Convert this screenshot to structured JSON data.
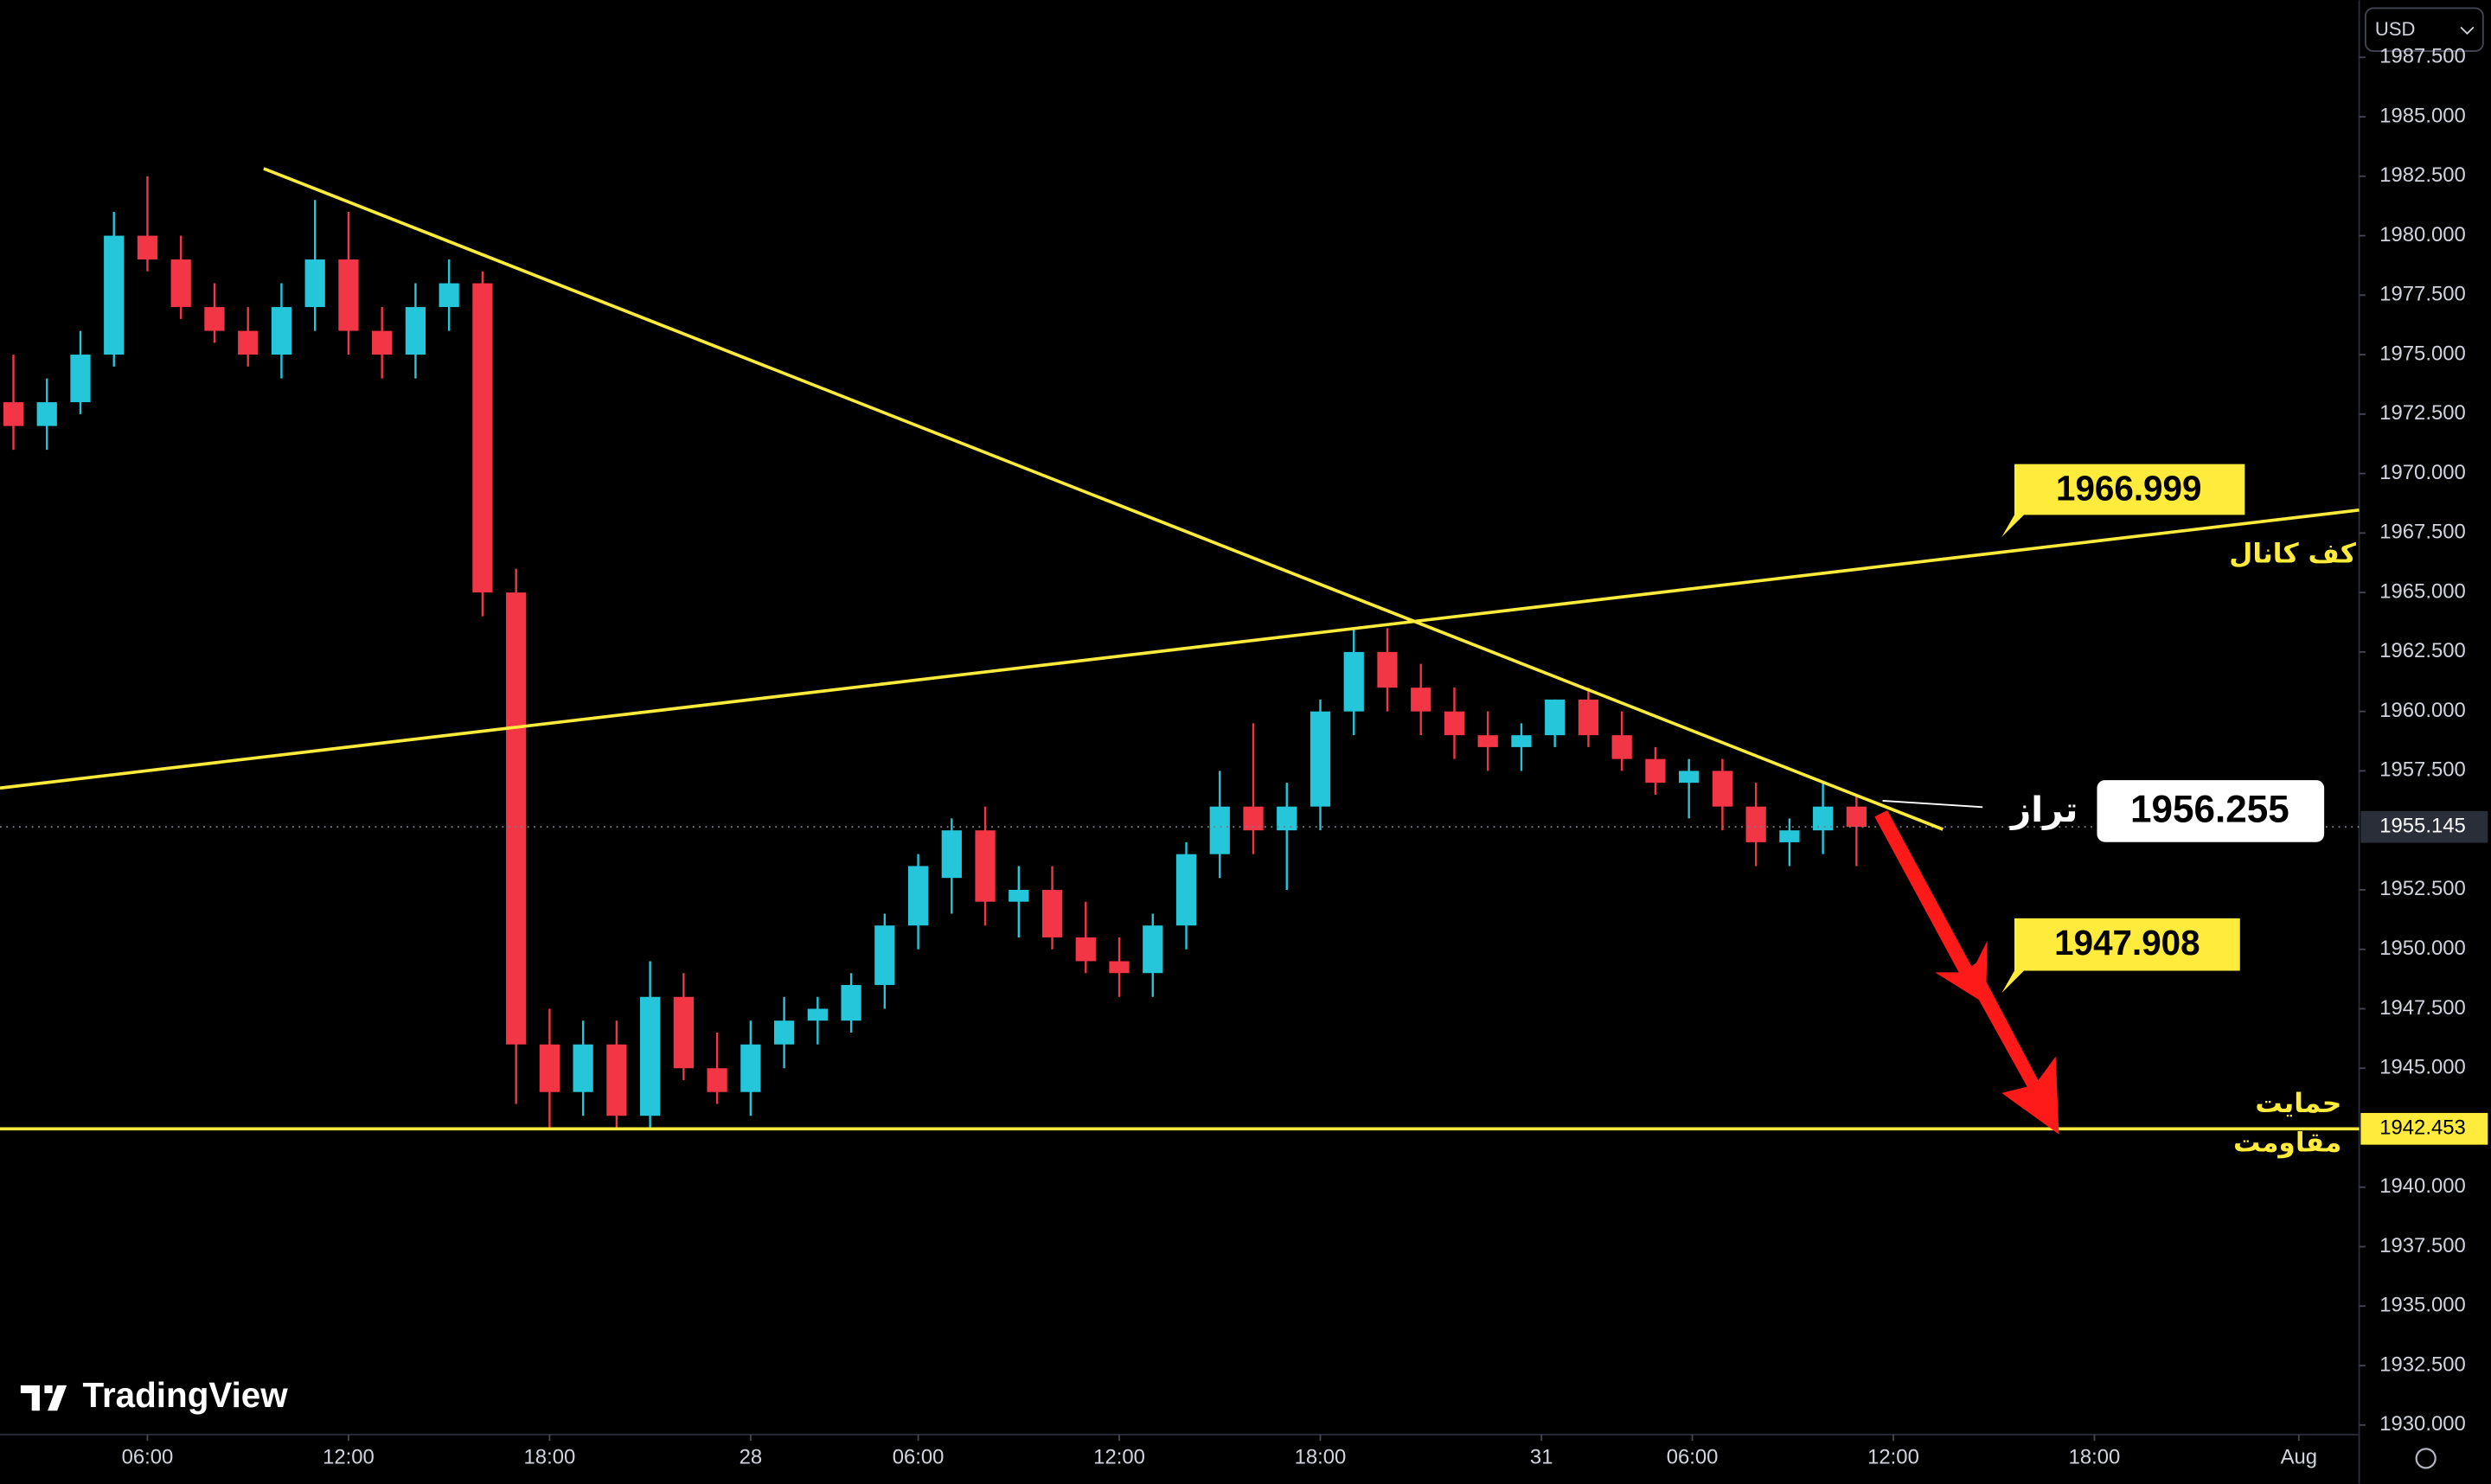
{
  "chart_data": {
    "type": "candlestick",
    "currency": "USD",
    "watermark": "TradingView",
    "x": [
      2,
      3,
      4,
      5,
      6,
      7,
      8,
      9,
      10,
      11,
      12,
      13,
      14,
      15,
      16,
      17,
      18,
      19,
      20,
      21,
      22,
      23,
      24,
      25,
      26,
      27,
      28,
      29,
      30,
      31,
      32,
      33,
      34,
      35,
      36,
      37,
      38,
      39,
      40,
      41,
      42,
      43,
      44,
      45,
      46,
      47,
      48,
      49,
      50,
      51,
      52,
      53,
      54,
      55,
      56,
      57
    ],
    "open": [
      1973,
      1972,
      1973,
      1975,
      1980,
      1979,
      1977,
      1976,
      1975,
      1977,
      1979,
      1976,
      1975,
      1977,
      1978,
      1965,
      1946,
      1944,
      1946,
      1943,
      1948,
      1945,
      1944,
      1946,
      1947,
      1947,
      1948.5,
      1951,
      1953,
      1955,
      1952,
      1952.5,
      1950.5,
      1949.5,
      1949,
      1951,
      1954,
      1956,
      1955,
      1956,
      1960,
      1962.5,
      1961,
      1960,
      1959,
      1958.5,
      1959,
      1960.5,
      1959,
      1958,
      1957,
      1957.5,
      1956,
      1954.5,
      1955,
      1956
    ],
    "high": [
      1975,
      1974,
      1976,
      1981,
      1982.5,
      1980,
      1978,
      1977,
      1978,
      1981.5,
      1981,
      1977,
      1978,
      1979,
      1978.5,
      1966,
      1947.5,
      1947,
      1947,
      1949.5,
      1949,
      1946.5,
      1947,
      1948,
      1948,
      1949,
      1951.5,
      1954,
      1955.5,
      1956,
      1953.5,
      1953.5,
      1952,
      1950.5,
      1951.5,
      1954.5,
      1957.5,
      1959.5,
      1957,
      1960.5,
      1963.5,
      1963.5,
      1962,
      1961,
      1960,
      1959.5,
      1960.5,
      1961,
      1960,
      1958.5,
      1958,
      1958,
      1957,
      1955.5,
      1957,
      1956.5
    ],
    "low": [
      1971,
      1971,
      1972.5,
      1974.5,
      1978.5,
      1976.5,
      1975.5,
      1974.5,
      1974,
      1976,
      1975,
      1974,
      1974,
      1976,
      1964,
      1943.5,
      1942.5,
      1943,
      1942.5,
      1942.5,
      1944.5,
      1943.5,
      1943,
      1945,
      1946,
      1946.5,
      1947.5,
      1950,
      1951.5,
      1951,
      1950.5,
      1950,
      1949,
      1948,
      1948,
      1950,
      1953,
      1954,
      1952.5,
      1955,
      1959,
      1960,
      1959,
      1958,
      1957.5,
      1957.5,
      1958.5,
      1958.5,
      1957.5,
      1956.5,
      1955.5,
      1955,
      1953.5,
      1953.5,
      1954,
      1953.5
    ],
    "close": [
      1972,
      1973,
      1975,
      1980,
      1979,
      1977,
      1976,
      1975,
      1977,
      1979,
      1976,
      1975,
      1977,
      1978,
      1965,
      1946,
      1944,
      1946,
      1943,
      1948,
      1945,
      1944,
      1946,
      1947,
      1947.5,
      1948.5,
      1951,
      1953.5,
      1955,
      1952,
      1952.5,
      1950.5,
      1949.5,
      1949,
      1951,
      1954,
      1956,
      1955,
      1956,
      1960,
      1962.5,
      1961,
      1960,
      1959,
      1958.5,
      1959,
      1960.5,
      1959,
      1958,
      1957,
      1957.5,
      1956,
      1954.5,
      1955,
      1956,
      1955.145
    ],
    "up_color": "#26c6da",
    "down_color": "#f23645",
    "xlim": [
      1.6,
      72.0
    ],
    "xticks": [
      {
        "value": 6,
        "label": "06:00"
      },
      {
        "value": 12,
        "label": "12:00"
      },
      {
        "value": 18,
        "label": "18:00"
      },
      {
        "value": 24,
        "label": "28"
      },
      {
        "value": 29,
        "label": "06:00"
      },
      {
        "value": 35,
        "label": "12:00"
      },
      {
        "value": 41,
        "label": "18:00"
      },
      {
        "value": 47.6,
        "label": "31"
      },
      {
        "value": 52.1,
        "label": "06:00"
      },
      {
        "value": 58.1,
        "label": "12:00"
      },
      {
        "value": 64.1,
        "label": "18:00"
      },
      {
        "value": 70.2,
        "label": "Aug"
      }
    ],
    "ylim": [
      1929.6,
      1989.9
    ],
    "yticks": [
      {
        "value": 1930,
        "label": "1930.000"
      },
      {
        "value": 1932.5,
        "label": "1932.500"
      },
      {
        "value": 1935,
        "label": "1935.000"
      },
      {
        "value": 1937.5,
        "label": "1937.500"
      },
      {
        "value": 1940,
        "label": "1940.000"
      },
      {
        "value": 1945,
        "label": "1945.000"
      },
      {
        "value": 1947.5,
        "label": "1947.500"
      },
      {
        "value": 1950,
        "label": "1950.000"
      },
      {
        "value": 1952.5,
        "label": "1952.500"
      },
      {
        "value": 1957.5,
        "label": "1957.500"
      },
      {
        "value": 1960,
        "label": "1960.000"
      },
      {
        "value": 1962.5,
        "label": "1962.500"
      },
      {
        "value": 1965,
        "label": "1965.000"
      },
      {
        "value": 1967.5,
        "label": "1967.500"
      },
      {
        "value": 1970,
        "label": "1970.000"
      },
      {
        "value": 1972.5,
        "label": "1972.500"
      },
      {
        "value": 1975,
        "label": "1975.000"
      },
      {
        "value": 1977.5,
        "label": "1977.500"
      },
      {
        "value": 1980,
        "label": "1980.000"
      },
      {
        "value": 1982.5,
        "label": "1982.500"
      },
      {
        "value": 1985,
        "label": "1985.000"
      },
      {
        "value": 1987.5,
        "label": "1987.500"
      }
    ],
    "last_price": {
      "value": 1955.145,
      "label": "1955.145"
    },
    "support_line": {
      "value": 1942.453,
      "label": "1942.453",
      "color": "#ffeb3b"
    },
    "annotations": {
      "channel_value": {
        "value": 1966.999,
        "label": "1966.999"
      },
      "channel_text": "کف کانال",
      "level_value": {
        "value": 1956.255,
        "label": "1956.255"
      },
      "level_text": "تراز",
      "target_value": {
        "value": 1947.908,
        "label": "1947.908"
      },
      "support_text": "حمایت",
      "resistance_text": "مقاومت"
    }
  }
}
